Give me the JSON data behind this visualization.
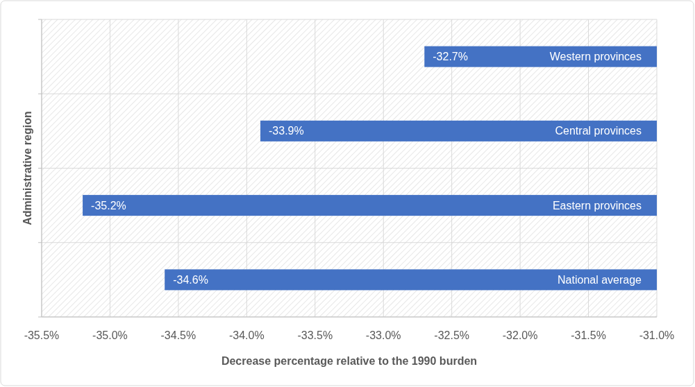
{
  "chart_data": {
    "type": "bar",
    "orientation": "horizontal",
    "xlabel": "Decrease percentage relative to the 1990 burden",
    "ylabel": "Administrative region",
    "categories": [
      "Western provinces",
      "Central provinces",
      "Eastern provinces",
      "National average"
    ],
    "values": [
      -32.7,
      -33.9,
      -35.2,
      -34.6
    ],
    "value_labels": [
      "-32.7%",
      "-33.9%",
      "-35.2%",
      "-34.6%"
    ],
    "color": "#4472c4",
    "xlim": [
      -35.5,
      -31.0
    ],
    "xticks": [
      {
        "value": -35.5,
        "label": "-35.5%"
      },
      {
        "value": -35.0,
        "label": "-35.0%"
      },
      {
        "value": -34.5,
        "label": "-34.5%"
      },
      {
        "value": -34.0,
        "label": "-34.0%"
      },
      {
        "value": -33.5,
        "label": "-33.5%"
      },
      {
        "value": -33.0,
        "label": "-33.0%"
      },
      {
        "value": -32.5,
        "label": "-32.5%"
      },
      {
        "value": -32.0,
        "label": "-32.0%"
      },
      {
        "value": -31.5,
        "label": "-31.5%"
      },
      {
        "value": -31.0,
        "label": "-31.0%"
      }
    ],
    "grid": true
  }
}
